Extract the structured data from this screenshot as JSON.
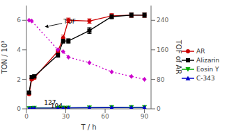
{
  "chart_data": {
    "type": "line",
    "xlabel": "T / h",
    "ylabel": "TON / 10³",
    "y2label": "TOF of AR",
    "xlim": [
      0,
      95
    ],
    "xticks": [
      0,
      30,
      60,
      90
    ],
    "ylim": [
      0,
      7
    ],
    "yticks": [
      0,
      2,
      4,
      6
    ],
    "y2lim": [
      0,
      280
    ],
    "y2ticks": [
      0,
      80,
      160,
      240
    ],
    "grid": false,
    "legend": "right",
    "series": [
      {
        "name": "AR",
        "color": "#cc0000",
        "marker": "circle",
        "line_style": "solid",
        "x": [
          2,
          4,
          6,
          24,
          28,
          32,
          48,
          65,
          80,
          90
        ],
        "values": [
          1.0,
          2.0,
          2.1,
          3.9,
          4.8,
          6.0,
          5.95,
          6.3,
          6.35,
          6.35
        ],
        "errors": [
          0.05,
          0.08,
          0.08,
          0.1,
          0.2,
          0.15,
          0.15,
          0.15,
          0.15,
          0.15
        ]
      },
      {
        "name": "Alizarin",
        "color": "#000000",
        "marker": "square",
        "line_style": "solid",
        "x": [
          2,
          4,
          6,
          24,
          28,
          32,
          48,
          65,
          80,
          90
        ],
        "values": [
          1.1,
          2.15,
          2.2,
          3.65,
          4.6,
          4.6,
          5.3,
          6.25,
          6.35,
          6.35
        ],
        "errors": [
          0.1,
          0.1,
          0.1,
          0.15,
          0.15,
          0.15,
          0.2,
          0.15,
          0.15,
          0.15
        ]
      },
      {
        "name": "Eosin Y",
        "color": "#00aa00",
        "marker": "triangle-down",
        "line_style": "solid",
        "x": [
          2,
          4,
          6,
          24,
          28,
          32,
          48,
          65,
          80,
          90
        ],
        "values": [
          0.04,
          0.05,
          0.06,
          0.06,
          0.07,
          0.07,
          0.08,
          0.1,
          0.1,
          0.11
        ]
      },
      {
        "name": "C-343",
        "color": "#0000cc",
        "marker": "triangle-up",
        "line_style": "solid",
        "x": [
          2,
          4,
          6,
          24,
          28,
          32,
          48,
          65,
          80,
          90
        ],
        "values": [
          0.02,
          0.03,
          0.04,
          0.05,
          0.05,
          0.06,
          0.07,
          0.08,
          0.09,
          0.09
        ]
      },
      {
        "color": "#cc00cc",
        "marker": "diamond",
        "line_style": "dotted",
        "axis": "y2",
        "x": [
          2,
          4,
          24,
          28,
          32,
          48,
          65,
          80,
          90
        ],
        "values": [
          240,
          238,
          160,
          155,
          140,
          125,
          100,
          88,
          80
        ]
      }
    ],
    "annotations": [
      {
        "text": "TOF",
        "xy": [
          14,
          5.55
        ],
        "xytext": [
          33,
          5.9
        ]
      },
      {
        "text": "127",
        "xy": [
          27,
          0.07
        ],
        "xytext": [
          18,
          0.4
        ]
      },
      {
        "text": "104",
        "xy": [
          32,
          0.06
        ],
        "xytext": [
          23,
          0.18
        ]
      }
    ]
  }
}
